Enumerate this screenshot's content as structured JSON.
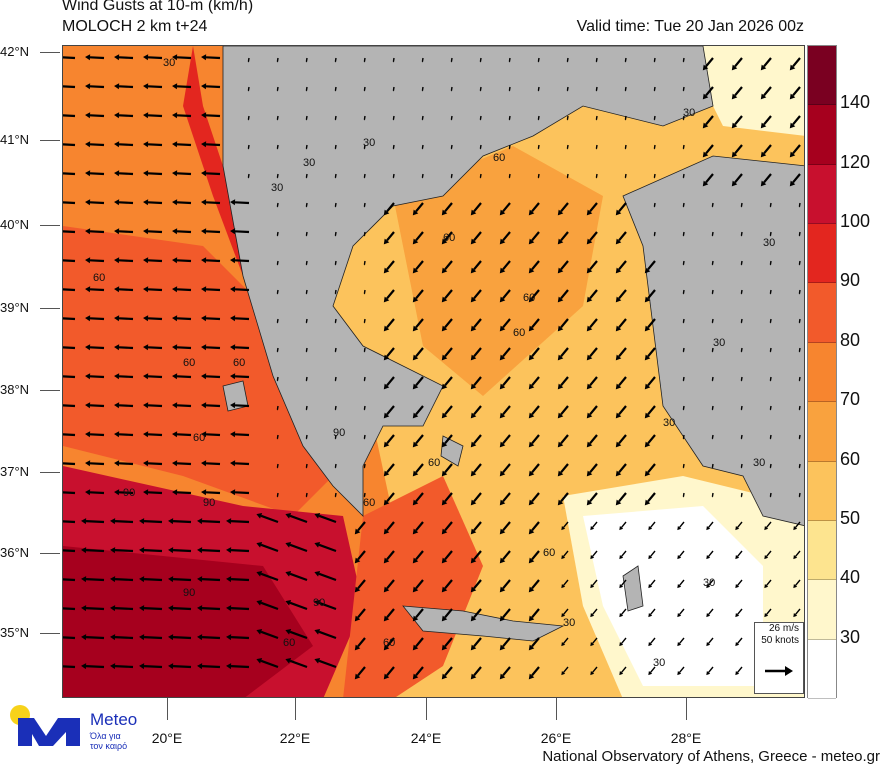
{
  "header": {
    "title": "Wind Gusts at 10-m (km/h)",
    "subtitle": "MOLOCH 2 km t+24",
    "valid_time": "Valid time: Tue 20 Jan 2026 00z"
  },
  "axes": {
    "lat_labels": [
      "42°N",
      "41°N",
      "40°N",
      "39°N",
      "38°N",
      "37°N",
      "36°N",
      "35°N"
    ],
    "lon_labels": [
      "20°E",
      "22°E",
      "24°E",
      "26°E",
      "28°E"
    ]
  },
  "colorbar": {
    "unit": "km/h",
    "labels": [
      "140",
      "120",
      "100",
      "90",
      "80",
      "70",
      "60",
      "50",
      "40",
      "30"
    ],
    "colors": [
      "#7a0021",
      "#a6001e",
      "#c8102e",
      "#e3261f",
      "#f25a2b",
      "#f7852f",
      "#f9a23e",
      "#fcc35c",
      "#fde48f",
      "#fff7cc",
      "#ffffff"
    ]
  },
  "map": {
    "land_color": "#b4b4b4",
    "contour_labels": [
      "30",
      "30",
      "30",
      "30",
      "30",
      "60",
      "60",
      "60",
      "60",
      "60",
      "60",
      "60",
      "60",
      "90",
      "90",
      "90",
      "90",
      "60",
      "60",
      "60",
      "30",
      "30",
      "30",
      "30",
      "30",
      "30",
      "60",
      "90",
      "60",
      "30"
    ]
  },
  "vector_legend": {
    "speed": "26 m/s",
    "knots": "50 knots",
    "arrow_icon": "arrow-right-icon"
  },
  "logo": {
    "name": "Meteo",
    "tagline_1": "Όλα για",
    "tagline_2": "τον καιρό",
    "brand_color": "#1a2fb8",
    "sun_color": "#f7d21a"
  },
  "footer": {
    "credit": "National Observatory of Athens, Greece - meteo.gr"
  }
}
